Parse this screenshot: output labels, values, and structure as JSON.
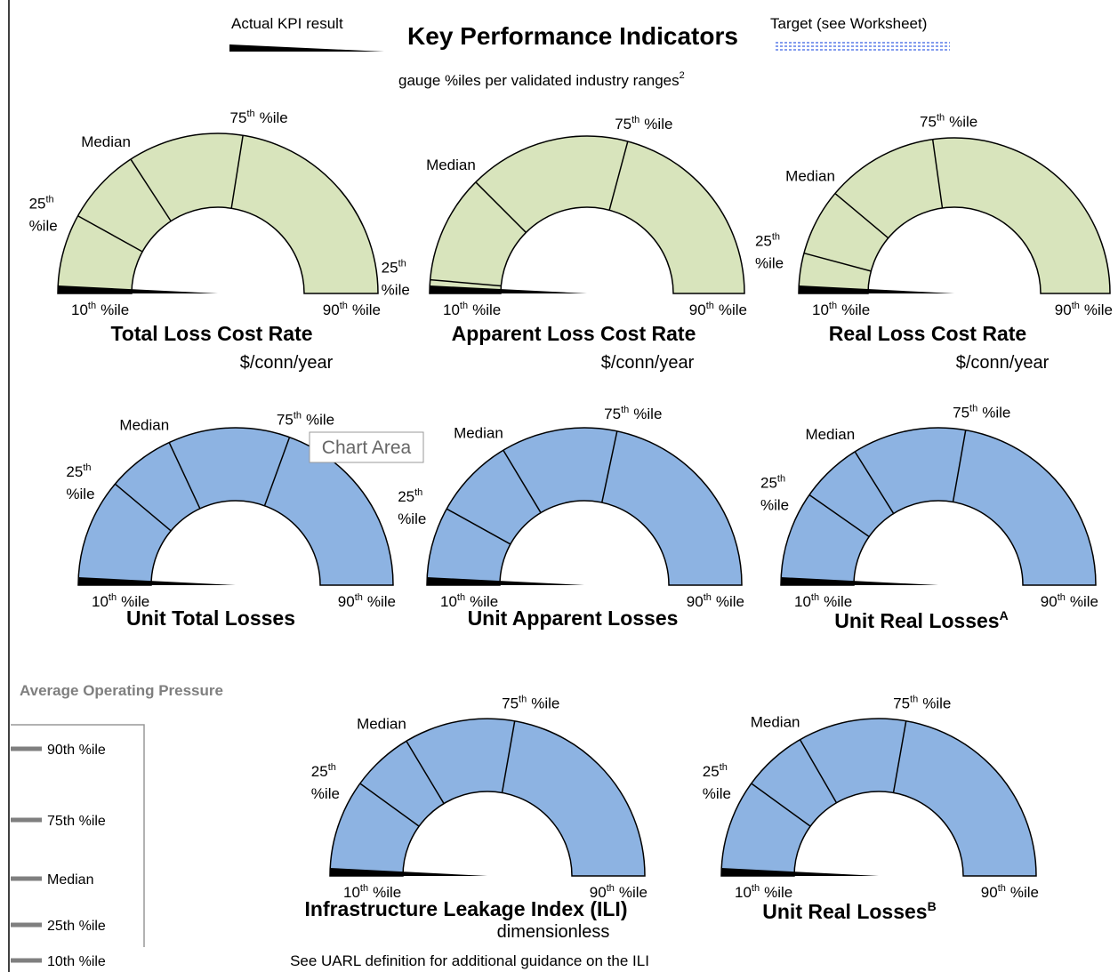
{
  "header": {
    "legend_actual": "Actual KPI result",
    "title": "Key Performance Indicators",
    "legend_target": "Target (see Worksheet)",
    "subtitle": "gauge %iles per validated industry ranges",
    "subtitle_note": "2"
  },
  "percentile_labels": {
    "p10": {
      "num": "10",
      "sup": "th",
      "text": "%ile"
    },
    "p25": {
      "num": "25",
      "sup": "th",
      "text": "%ile"
    },
    "median": "Median",
    "p75": {
      "num": "75",
      "sup": "th",
      "text": "%ile"
    },
    "p90": {
      "num": "90",
      "sup": "th",
      "text": "%ile"
    }
  },
  "gauges": [
    {
      "title": "Total Loss Cost Rate",
      "unit": "$/conn/year"
    },
    {
      "title": "Apparent Loss Cost Rate",
      "unit": "$/conn/year"
    },
    {
      "title": "Real Loss Cost Rate",
      "unit": "$/conn/year"
    },
    {
      "title": "Unit Total Losses"
    },
    {
      "title": "Unit Apparent Losses"
    },
    {
      "title": "Unit Real Losses",
      "note": "A"
    },
    {
      "title": "Infrastructure Leakage Index (ILI)",
      "unit": "dimensionless"
    },
    {
      "title": "Unit Real Losses",
      "note": "B"
    }
  ],
  "tooltip": "Chart Area",
  "pressure": {
    "title": "Average Operating Pressure",
    "levels": [
      "90th %ile",
      "75th %ile",
      "Median",
      "25th %ile",
      "10th %ile"
    ]
  },
  "footnote": "See UARL definition for additional guidance on the ILI"
}
